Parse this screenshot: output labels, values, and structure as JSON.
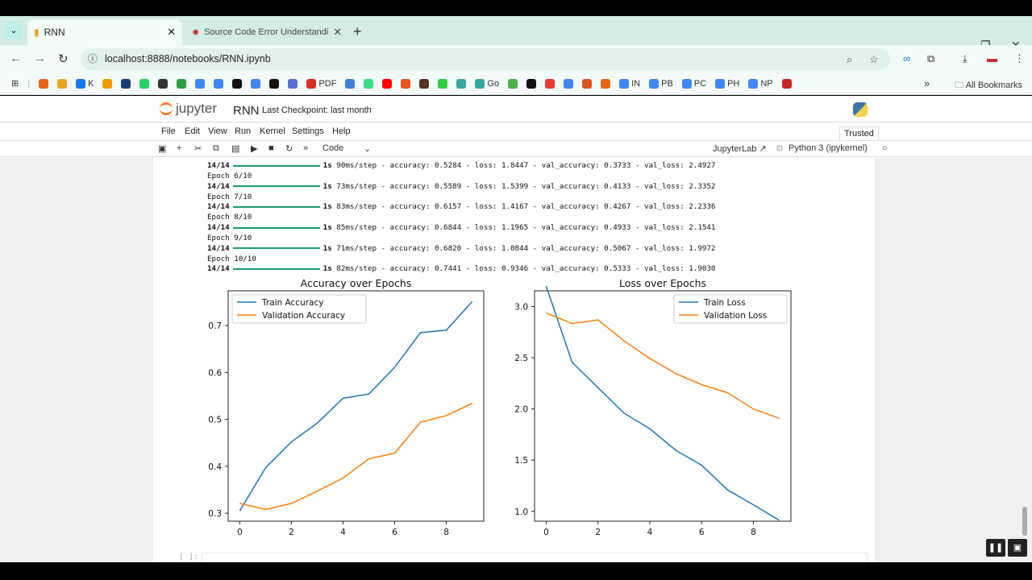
{
  "browser": {
    "tabs": [
      {
        "title": "RNN",
        "icon": "notebook-icon",
        "active": true
      },
      {
        "title": "Source Code Error Understandi",
        "icon": "bug-icon",
        "active": false
      }
    ],
    "url": "localhost:8888/notebooks/RNN.ipynb",
    "bookmarks": [
      {
        "icon": "diamond-icon",
        "label": "",
        "color": "#e8641a"
      },
      {
        "icon": "image-icon",
        "label": "",
        "color": "#f0a020"
      },
      {
        "icon": "facebook-icon",
        "label": "K",
        "color": "#1877f2"
      },
      {
        "icon": "analytics-icon",
        "label": "",
        "color": "#f29900"
      },
      {
        "icon": "ieee-icon",
        "label": "",
        "color": "#1a3d7c"
      },
      {
        "icon": "whatsapp-icon",
        "label": "",
        "color": "#25d366"
      },
      {
        "icon": "globe-icon",
        "label": "",
        "color": "#333333"
      },
      {
        "icon": "plus-doc-icon",
        "label": "",
        "color": "#2e9e44"
      },
      {
        "icon": "google-icon",
        "label": "",
        "color": "#4285f4"
      },
      {
        "icon": "google-icon",
        "label": "",
        "color": "#4285f4"
      },
      {
        "icon": "github-icon",
        "label": "",
        "color": "#111111"
      },
      {
        "icon": "google-icon",
        "label": "",
        "color": "#4285f4"
      },
      {
        "icon": "openai-icon",
        "label": "",
        "color": "#111111"
      },
      {
        "icon": "bird-icon",
        "label": "",
        "color": "#5a6fd6"
      },
      {
        "icon": "pdf-icon",
        "label": "PDF",
        "color": "#d93025"
      },
      {
        "icon": "bracket-icon",
        "label": "",
        "color": "#3b7fd6"
      },
      {
        "icon": "android-icon",
        "label": "",
        "color": "#3ddc84"
      },
      {
        "icon": "youtube-icon",
        "label": "",
        "color": "#ff0000"
      },
      {
        "icon": "z-icon",
        "label": "",
        "color": "#e8541a"
      },
      {
        "icon": "dot-icon",
        "label": "",
        "color": "#553322"
      },
      {
        "icon": "ring-icon",
        "label": "",
        "color": "#2ecc40"
      },
      {
        "icon": "gpt-icon",
        "label": "",
        "color": "#3aa6a0"
      },
      {
        "icon": "gpt-icon",
        "label": "Go",
        "color": "#3aa6a0"
      },
      {
        "icon": "leaf-icon",
        "label": "",
        "color": "#4caf50"
      },
      {
        "icon": "cl-icon",
        "label": "",
        "color": "#111111"
      },
      {
        "icon": "yandex-icon",
        "label": "",
        "color": "#e53935"
      },
      {
        "icon": "google-icon",
        "label": "",
        "color": "#4285f4"
      },
      {
        "icon": "matlab-icon",
        "label": "",
        "color": "#d9541a"
      },
      {
        "icon": "eye-icon",
        "label": "",
        "color": "#e8641a"
      },
      {
        "icon": "google-icon",
        "label": "IN",
        "color": "#4285f4"
      },
      {
        "icon": "google-icon",
        "label": "PB",
        "color": "#4285f4"
      },
      {
        "icon": "google-icon",
        "label": "PC",
        "color": "#4285f4"
      },
      {
        "icon": "google-icon",
        "label": "PH",
        "color": "#4285f4"
      },
      {
        "icon": "google-icon",
        "label": "NP",
        "color": "#4285f4"
      },
      {
        "icon": "doc-red-icon",
        "label": "",
        "color": "#c62828"
      }
    ],
    "more": "»",
    "all_bookmarks": "All Bookmarks"
  },
  "jupyter": {
    "logo": "jupyter",
    "notebook": "RNN",
    "checkpoint": "Last Checkpoint: last month",
    "menu": [
      "File",
      "Edit",
      "View",
      "Run",
      "Kernel",
      "Settings",
      "Help"
    ],
    "trusted": "Trusted",
    "cell_type": "Code",
    "jupyterlab": "JupyterLab ↗",
    "kernel": "Python 3 (ipykernel)",
    "next_prompt": "[ ]:"
  },
  "log": [
    {
      "kind": "step",
      "steps": "14/14",
      "time": "1s",
      "rest": "90ms/step - accuracy: 0.5284 - loss: 1.8447 - val_accuracy: 0.3733 - val_loss: 2.4927"
    },
    {
      "kind": "epoch",
      "text": "Epoch 6/10"
    },
    {
      "kind": "step",
      "steps": "14/14",
      "time": "1s",
      "rest": "73ms/step - accuracy: 0.5589 - loss: 1.5399 - val_accuracy: 0.4133 - val_loss: 2.3352"
    },
    {
      "kind": "epoch",
      "text": "Epoch 7/10"
    },
    {
      "kind": "step",
      "steps": "14/14",
      "time": "1s",
      "rest": "83ms/step - accuracy: 0.6157 - loss: 1.4167 - val_accuracy: 0.4267 - val_loss: 2.2336"
    },
    {
      "kind": "epoch",
      "text": "Epoch 8/10"
    },
    {
      "kind": "step",
      "steps": "14/14",
      "time": "1s",
      "rest": "85ms/step - accuracy: 0.6844 - loss: 1.1965 - val_accuracy: 0.4933 - val_loss: 2.1541"
    },
    {
      "kind": "epoch",
      "text": "Epoch 9/10"
    },
    {
      "kind": "step",
      "steps": "14/14",
      "time": "1s",
      "rest": "71ms/step - accuracy: 0.6820 - loss: 1.0844 - val_accuracy: 0.5067 - val_loss: 1.9972"
    },
    {
      "kind": "epoch",
      "text": "Epoch 10/10"
    },
    {
      "kind": "step",
      "steps": "14/14",
      "time": "1s",
      "rest": "82ms/step - accuracy: 0.7441 - loss: 0.9346 - val_accuracy: 0.5333 - val_loss: 1.9030"
    }
  ],
  "chart_data": [
    {
      "type": "line",
      "title": "Accuracy over Epochs",
      "xlabel": "",
      "ylabel": "",
      "x": [
        0,
        1,
        2,
        3,
        4,
        5,
        6,
        7,
        8,
        9
      ],
      "xlim": [
        -0.45,
        9.45
      ],
      "ylim": [
        0.283,
        0.774
      ],
      "xticks": [
        0,
        2,
        4,
        6,
        8
      ],
      "yticks": [
        0.3,
        0.4,
        0.5,
        0.6,
        0.7
      ],
      "legend": "top-left",
      "grid": false,
      "series": [
        {
          "name": "Train Accuracy",
          "color": "#1f77b4",
          "values": [
            0.305,
            0.397,
            0.452,
            0.492,
            0.545,
            0.554,
            0.611,
            0.685,
            0.69,
            0.751
          ]
        },
        {
          "name": "Validation Accuracy",
          "color": "#ff7f0e",
          "values": [
            0.321,
            0.308,
            0.321,
            0.347,
            0.375,
            0.416,
            0.428,
            0.494,
            0.508,
            0.534
          ]
        }
      ]
    },
    {
      "type": "line",
      "title": "Loss over Epochs",
      "xlabel": "",
      "ylabel": "",
      "x": [
        0,
        1,
        2,
        3,
        4,
        5,
        6,
        7,
        8,
        9
      ],
      "xlim": [
        -0.45,
        9.45
      ],
      "ylim": [
        0.904,
        3.153
      ],
      "xticks": [
        0,
        2,
        4,
        6,
        8
      ],
      "yticks": [
        1.0,
        1.5,
        2.0,
        2.5,
        3.0
      ],
      "legend": "top-right",
      "grid": false,
      "series": [
        {
          "name": "Train Loss",
          "color": "#1f77b4",
          "values": [
            3.198,
            2.455,
            2.208,
            1.96,
            1.806,
            1.597,
            1.451,
            1.21,
            1.064,
            0.913
          ]
        },
        {
          "name": "Validation Loss",
          "color": "#ff7f0e",
          "values": [
            2.936,
            2.834,
            2.869,
            2.665,
            2.493,
            2.345,
            2.237,
            2.159,
            1.999,
            1.908
          ]
        }
      ]
    }
  ]
}
